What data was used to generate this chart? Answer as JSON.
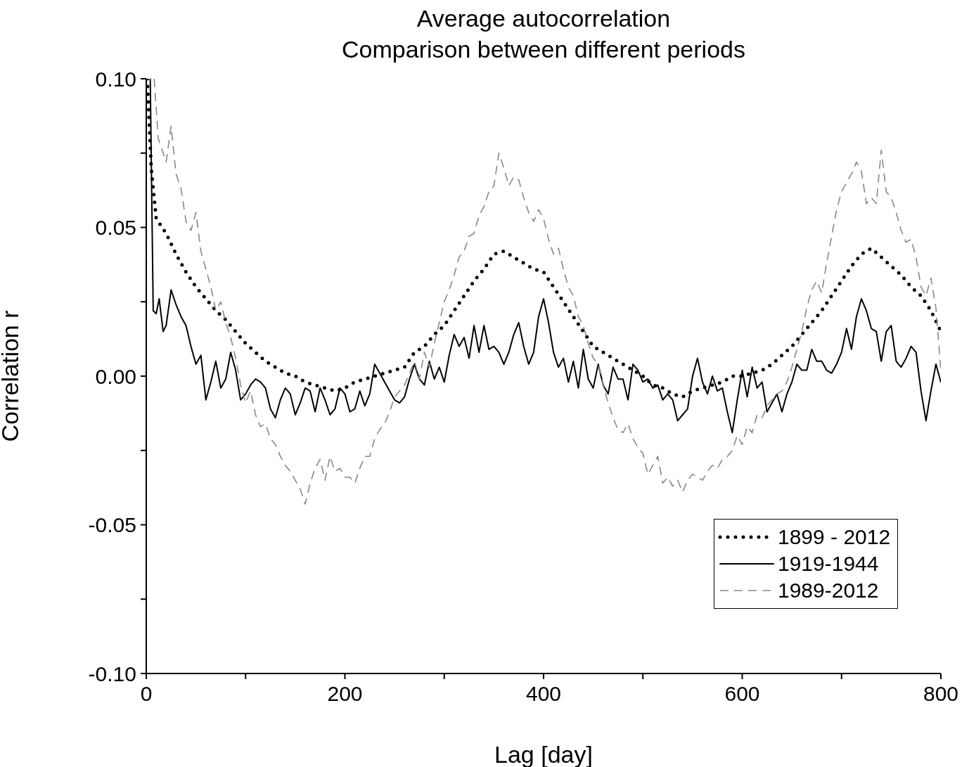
{
  "chart_data": {
    "type": "line",
    "title": "Average autocorrelation",
    "subtitle": "Comparison between different periods",
    "xlabel": "Lag [day]",
    "ylabel": "Correlation r",
    "xlim": [
      0,
      800
    ],
    "xticks": [
      0,
      {
        "value": 100,
        "label": null
      },
      200,
      {
        "value": 300,
        "label": null
      },
      400,
      {
        "value": 500,
        "label": null
      },
      600,
      {
        "value": 700,
        "label": null
      },
      800
    ],
    "ylim": [
      -0.1,
      0.1
    ],
    "yticks": [
      {
        "value": -0.1,
        "label": "-0.10"
      },
      {
        "value": -0.075,
        "label": null
      },
      {
        "value": -0.05,
        "label": "-0.05"
      },
      {
        "value": -0.025,
        "label": null
      },
      {
        "value": 0,
        "label": "0.00"
      },
      {
        "value": 0.025,
        "label": null
      },
      {
        "value": 0.05,
        "label": "0.05"
      },
      {
        "value": 0.075,
        "label": null
      },
      {
        "value": 0.1,
        "label": "0.10"
      }
    ],
    "legend": "bottom right",
    "marker": "none",
    "series": [
      {
        "name": "1899 - 2012",
        "color": "#000000",
        "line_style": "dotted",
        "x": [
          1,
          5,
          10,
          20,
          30,
          40,
          50,
          60,
          70,
          80,
          90,
          100,
          110,
          120,
          130,
          140,
          150,
          160,
          170,
          180,
          190,
          200,
          210,
          220,
          230,
          240,
          250,
          260,
          270,
          280,
          290,
          300,
          310,
          320,
          330,
          340,
          350,
          360,
          370,
          380,
          390,
          400,
          410,
          420,
          430,
          440,
          450,
          460,
          470,
          480,
          490,
          500,
          510,
          520,
          530,
          540,
          550,
          560,
          570,
          580,
          590,
          600,
          610,
          620,
          630,
          640,
          650,
          660,
          670,
          680,
          690,
          700,
          710,
          720,
          730,
          740,
          750,
          760,
          770,
          780,
          790,
          800
        ],
        "values": [
          0.1,
          0.07,
          0.053,
          0.048,
          0.041,
          0.035,
          0.03,
          0.026,
          0.022,
          0.019,
          0.015,
          0.011,
          0.008,
          0.005,
          0.003,
          0.001,
          0.0,
          -0.002,
          -0.003,
          -0.004,
          -0.005,
          -0.004,
          -0.002,
          -0.001,
          0.0,
          0.001,
          0.002,
          0.003,
          0.008,
          0.01,
          0.014,
          0.017,
          0.022,
          0.027,
          0.032,
          0.036,
          0.041,
          0.042,
          0.04,
          0.038,
          0.036,
          0.035,
          0.03,
          0.025,
          0.02,
          0.015,
          0.01,
          0.008,
          0.006,
          0.004,
          0.002,
          0.0,
          -0.003,
          -0.004,
          -0.006,
          -0.007,
          -0.005,
          -0.004,
          -0.003,
          -0.002,
          0.0,
          0.0,
          0.001,
          0.002,
          0.004,
          0.007,
          0.01,
          0.014,
          0.018,
          0.022,
          0.027,
          0.032,
          0.037,
          0.041,
          0.043,
          0.04,
          0.037,
          0.034,
          0.03,
          0.027,
          0.022,
          0.015
        ]
      },
      {
        "name": "1919-1944",
        "color": "#000000",
        "line_style": "solid",
        "x": [
          4,
          7,
          10,
          13,
          17,
          20,
          25,
          30,
          35,
          40,
          45,
          50,
          55,
          60,
          65,
          70,
          75,
          80,
          85,
          90,
          95,
          100,
          105,
          110,
          115,
          120,
          125,
          130,
          135,
          140,
          145,
          150,
          155,
          160,
          165,
          170,
          175,
          180,
          185,
          190,
          195,
          200,
          205,
          210,
          215,
          220,
          225,
          230,
          235,
          240,
          245,
          250,
          255,
          260,
          265,
          270,
          275,
          280,
          285,
          290,
          295,
          300,
          305,
          310,
          315,
          320,
          325,
          330,
          335,
          340,
          345,
          350,
          355,
          360,
          365,
          370,
          375,
          380,
          385,
          390,
          395,
          400,
          405,
          410,
          415,
          420,
          425,
          430,
          435,
          440,
          445,
          450,
          455,
          460,
          465,
          470,
          475,
          480,
          485,
          490,
          495,
          500,
          505,
          510,
          515,
          520,
          525,
          530,
          535,
          540,
          545,
          550,
          555,
          560,
          565,
          570,
          575,
          580,
          585,
          590,
          595,
          600,
          605,
          610,
          615,
          620,
          625,
          630,
          635,
          640,
          645,
          650,
          655,
          660,
          665,
          670,
          675,
          680,
          685,
          690,
          695,
          700,
          705,
          710,
          715,
          720,
          725,
          730,
          735,
          740,
          745,
          750,
          755,
          760,
          765,
          770,
          775,
          780,
          785,
          790,
          795,
          800
        ],
        "values": [
          0.1,
          0.022,
          0.021,
          0.026,
          0.015,
          0.017,
          0.029,
          0.024,
          0.02,
          0.017,
          0.01,
          0.004,
          0.007,
          -0.008,
          -0.002,
          0.005,
          -0.004,
          -0.001,
          0.008,
          0.002,
          -0.008,
          -0.006,
          -0.003,
          -0.001,
          -0.002,
          -0.004,
          -0.011,
          -0.014,
          -0.008,
          -0.004,
          -0.006,
          -0.013,
          -0.009,
          -0.004,
          -0.005,
          -0.012,
          -0.004,
          -0.008,
          -0.013,
          -0.011,
          -0.004,
          -0.006,
          -0.012,
          -0.011,
          -0.005,
          -0.01,
          -0.006,
          0.004,
          0.001,
          -0.002,
          -0.005,
          -0.008,
          -0.009,
          -0.007,
          -0.001,
          0.004,
          -0.001,
          -0.003,
          0.005,
          -0.001,
          0.003,
          -0.002,
          0.007,
          0.014,
          0.01,
          0.013,
          0.006,
          0.017,
          0.008,
          0.017,
          0.009,
          0.01,
          0.008,
          0.004,
          0.008,
          0.014,
          0.018,
          0.01,
          0.004,
          0.008,
          0.02,
          0.026,
          0.018,
          0.008,
          0.003,
          0.006,
          -0.002,
          0.005,
          -0.004,
          0.009,
          -0.001,
          -0.004,
          0.004,
          -0.003,
          -0.006,
          0.003,
          -0.001,
          -0.001,
          -0.008,
          0.004,
          0.002,
          -0.002,
          -0.001,
          -0.004,
          -0.003,
          -0.008,
          -0.006,
          -0.008,
          -0.015,
          -0.013,
          -0.011,
          0.0,
          0.006,
          -0.002,
          -0.006,
          0.0,
          -0.005,
          -0.004,
          -0.012,
          -0.019,
          -0.008,
          0.002,
          -0.007,
          0.003,
          -0.004,
          -0.002,
          -0.012,
          -0.009,
          -0.006,
          -0.012,
          -0.006,
          -0.002,
          0.004,
          0.002,
          0.002,
          0.009,
          0.005,
          0.005,
          0.002,
          0.001,
          0.004,
          0.008,
          0.016,
          0.009,
          0.02,
          0.026,
          0.022,
          0.016,
          0.015,
          0.005,
          0.015,
          0.017,
          0.005,
          0.003,
          0.006,
          0.01,
          0.008,
          -0.005,
          -0.015,
          -0.005,
          0.004,
          -0.002
        ]
      },
      {
        "name": "1989-2012",
        "color": "#888888",
        "line_style": "dashed",
        "x": [
          8,
          12,
          15,
          20,
          25,
          30,
          35,
          40,
          45,
          50,
          55,
          60,
          65,
          70,
          75,
          80,
          85,
          90,
          95,
          100,
          105,
          110,
          115,
          120,
          125,
          130,
          135,
          140,
          145,
          150,
          155,
          160,
          165,
          170,
          175,
          180,
          185,
          190,
          195,
          200,
          205,
          210,
          215,
          220,
          225,
          230,
          235,
          240,
          245,
          250,
          255,
          260,
          265,
          270,
          275,
          280,
          285,
          290,
          295,
          300,
          305,
          310,
          315,
          320,
          325,
          330,
          335,
          340,
          345,
          350,
          355,
          360,
          365,
          370,
          375,
          380,
          385,
          390,
          395,
          400,
          405,
          410,
          415,
          420,
          425,
          430,
          435,
          440,
          445,
          450,
          455,
          460,
          465,
          470,
          475,
          480,
          485,
          490,
          495,
          500,
          505,
          510,
          515,
          520,
          525,
          530,
          535,
          540,
          545,
          550,
          555,
          560,
          565,
          570,
          575,
          580,
          585,
          590,
          595,
          600,
          605,
          610,
          615,
          620,
          625,
          630,
          635,
          640,
          645,
          650,
          655,
          660,
          665,
          670,
          675,
          680,
          685,
          690,
          695,
          700,
          705,
          710,
          715,
          720,
          725,
          730,
          735,
          740,
          745,
          750,
          755,
          760,
          765,
          770,
          775,
          780,
          785,
          790,
          795,
          800
        ],
        "values": [
          0.1,
          0.08,
          0.077,
          0.072,
          0.084,
          0.068,
          0.063,
          0.052,
          0.049,
          0.055,
          0.042,
          0.036,
          0.03,
          0.022,
          0.025,
          0.018,
          0.013,
          0.006,
          -0.003,
          -0.009,
          -0.005,
          -0.013,
          -0.017,
          -0.016,
          -0.021,
          -0.023,
          -0.027,
          -0.03,
          -0.032,
          -0.035,
          -0.038,
          -0.043,
          -0.036,
          -0.031,
          -0.028,
          -0.035,
          -0.027,
          -0.032,
          -0.031,
          -0.034,
          -0.034,
          -0.036,
          -0.031,
          -0.027,
          -0.027,
          -0.021,
          -0.018,
          -0.016,
          -0.012,
          -0.007,
          -0.005,
          -0.003,
          0.001,
          0.005,
          -0.001,
          0.008,
          0.003,
          0.011,
          0.018,
          0.025,
          0.029,
          0.034,
          0.04,
          0.042,
          0.047,
          0.048,
          0.054,
          0.057,
          0.062,
          0.064,
          0.075,
          0.07,
          0.064,
          0.067,
          0.066,
          0.06,
          0.055,
          0.052,
          0.056,
          0.053,
          0.046,
          0.041,
          0.043,
          0.036,
          0.03,
          0.027,
          0.02,
          0.017,
          0.011,
          0.006,
          0.004,
          -0.003,
          -0.009,
          -0.014,
          -0.018,
          -0.019,
          -0.016,
          -0.021,
          -0.024,
          -0.026,
          -0.033,
          -0.03,
          -0.027,
          -0.036,
          -0.034,
          -0.037,
          -0.035,
          -0.039,
          -0.035,
          -0.033,
          -0.034,
          -0.035,
          -0.032,
          -0.03,
          -0.031,
          -0.028,
          -0.027,
          -0.025,
          -0.02,
          -0.023,
          -0.017,
          -0.019,
          -0.013,
          -0.014,
          -0.01,
          -0.008,
          -0.006,
          -0.005,
          -0.002,
          0.003,
          0.009,
          0.015,
          0.023,
          0.029,
          0.032,
          0.028,
          0.038,
          0.047,
          0.056,
          0.062,
          0.065,
          0.068,
          0.072,
          0.069,
          0.058,
          0.06,
          0.058,
          0.076,
          0.062,
          0.06,
          0.055,
          0.049,
          0.045,
          0.046,
          0.04,
          0.03,
          0.027,
          0.033,
          0.023,
          0.002
        ]
      }
    ]
  }
}
